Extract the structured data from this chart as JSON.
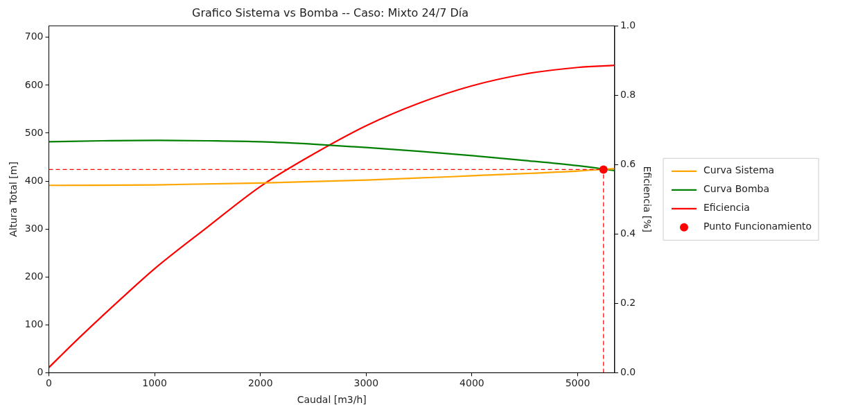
{
  "chart_data": {
    "type": "line",
    "title": "Grafico Sistema vs Bomba -- Caso: Mixto 24/7 Día",
    "xlabel": "Caudal [m3/h]",
    "ylabel": "Altura Total [m]",
    "y2label": "Eficiencia [%]",
    "xlim": [
      0,
      5350
    ],
    "xticks": [
      0,
      1000,
      2000,
      3000,
      4000,
      5000
    ],
    "ylim": [
      0,
      724
    ],
    "yticks": [
      0,
      100,
      200,
      300,
      400,
      500,
      600,
      700
    ],
    "y2lim": [
      0,
      1
    ],
    "y2ticks": [
      {
        "value": 0,
        "label": "0.0"
      },
      0.2,
      0.4,
      0.6,
      0.8,
      {
        "value": 1,
        "label": "1.0"
      }
    ],
    "legend": "right",
    "grid": false,
    "marker": "none",
    "line_style": "solid",
    "series": [
      {
        "name": "Curva Sistema",
        "color": "#ffa500",
        "x": [
          0,
          1000,
          2000,
          3000,
          4000,
          5000,
          5350
        ],
        "values": [
          391,
          392,
          396,
          402,
          411,
          421,
          426
        ]
      },
      {
        "name": "Curva Bomba",
        "color": "#008000",
        "x": [
          0,
          500,
          1000,
          1500,
          2000,
          2500,
          3000,
          3500,
          4000,
          4500,
          5000,
          5350
        ],
        "values": [
          482,
          484,
          485,
          484,
          482,
          477,
          470,
          462,
          453,
          443,
          432,
          422
        ]
      },
      {
        "name": "Eficiencia",
        "color": "#ff0000",
        "axis": "y2",
        "x": [
          0,
          250,
          500,
          750,
          1000,
          1500,
          2000,
          2500,
          3000,
          3500,
          4000,
          4500,
          5000,
          5350
        ],
        "values": [
          0.015,
          0.09,
          0.162,
          0.232,
          0.3,
          0.42,
          0.537,
          0.63,
          0.712,
          0.777,
          0.827,
          0.861,
          0.88,
          0.886
        ]
      },
      {
        "name": "Punto Funcionamiento",
        "type": "scatter",
        "marker": "circle",
        "color": "#ff0000",
        "x": [
          5244
        ],
        "values": [
          424
        ]
      }
    ],
    "ref_lines": [
      {
        "axis": "y",
        "value": 424,
        "color": "#ff0000",
        "line_style": "dashed"
      },
      {
        "axis": "x",
        "value": 5244,
        "color": "#ff0000",
        "line_style": "dashed"
      }
    ]
  }
}
